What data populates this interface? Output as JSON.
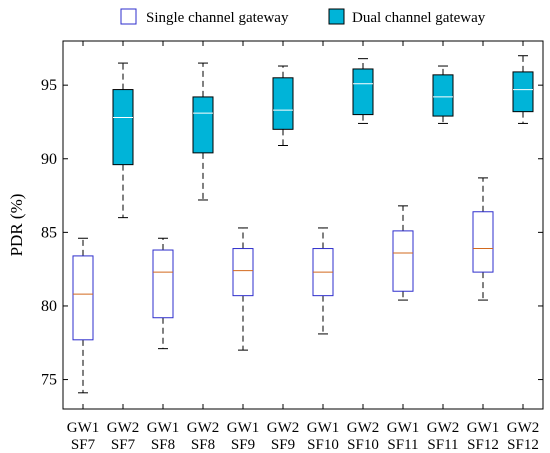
{
  "chart_data": {
    "type": "box",
    "title": "",
    "xlabel": "",
    "ylabel": "PDR (%)",
    "ylim": [
      73,
      98
    ],
    "yticks": [
      75,
      80,
      85,
      90,
      95
    ],
    "grid": false,
    "legend": {
      "placement": "top",
      "entries": [
        {
          "label": "Single channel gateway",
          "style": "single"
        },
        {
          "label": "Dual channel gateway",
          "style": "dual"
        }
      ]
    },
    "colors": {
      "single_edge": "#2d2dcc",
      "single_fill": "#ffffff",
      "single_median": "#d2691e",
      "dual_edge": "#000000",
      "dual_fill": "#00b4d8",
      "dual_median": "#ffffff",
      "whisker": "#000000"
    },
    "categories": [
      {
        "line1": "GW1",
        "line2": "SF7"
      },
      {
        "line1": "GW2",
        "line2": "SF7"
      },
      {
        "line1": "GW1",
        "line2": "SF8"
      },
      {
        "line1": "GW2",
        "line2": "SF8"
      },
      {
        "line1": "GW1",
        "line2": "SF9"
      },
      {
        "line1": "GW2",
        "line2": "SF9"
      },
      {
        "line1": "GW1",
        "line2": "SF10"
      },
      {
        "line1": "GW2",
        "line2": "SF10"
      },
      {
        "line1": "GW1",
        "line2": "SF11"
      },
      {
        "line1": "GW2",
        "line2": "SF11"
      },
      {
        "line1": "GW1",
        "line2": "SF12"
      },
      {
        "line1": "GW2",
        "line2": "SF12"
      }
    ],
    "boxes": [
      {
        "style": "single",
        "min": 74.1,
        "q1": 77.7,
        "median": 80.8,
        "q3": 83.4,
        "max": 84.6
      },
      {
        "style": "dual",
        "min": 86.0,
        "q1": 89.6,
        "median": 92.8,
        "q3": 94.7,
        "max": 96.5
      },
      {
        "style": "single",
        "min": 77.1,
        "q1": 79.2,
        "median": 82.3,
        "q3": 83.8,
        "max": 84.6
      },
      {
        "style": "dual",
        "min": 87.2,
        "q1": 90.4,
        "median": 93.1,
        "q3": 94.2,
        "max": 96.5
      },
      {
        "style": "single",
        "min": 77.0,
        "q1": 80.7,
        "median": 82.4,
        "q3": 83.9,
        "max": 85.3
      },
      {
        "style": "dual",
        "min": 90.9,
        "q1": 92.0,
        "median": 93.3,
        "q3": 95.5,
        "max": 96.3
      },
      {
        "style": "single",
        "min": 78.1,
        "q1": 80.7,
        "median": 82.3,
        "q3": 83.9,
        "max": 85.3
      },
      {
        "style": "dual",
        "min": 92.4,
        "q1": 93.0,
        "median": 95.1,
        "q3": 96.1,
        "max": 96.8
      },
      {
        "style": "single",
        "min": 80.4,
        "q1": 81.0,
        "median": 83.6,
        "q3": 85.1,
        "max": 86.8
      },
      {
        "style": "dual",
        "min": 92.4,
        "q1": 92.9,
        "median": 94.2,
        "q3": 95.7,
        "max": 96.3
      },
      {
        "style": "single",
        "min": 80.4,
        "q1": 82.3,
        "median": 83.9,
        "q3": 86.4,
        "max": 88.7
      },
      {
        "style": "dual",
        "min": 92.4,
        "q1": 93.2,
        "median": 94.7,
        "q3": 95.9,
        "max": 97.0
      }
    ]
  }
}
